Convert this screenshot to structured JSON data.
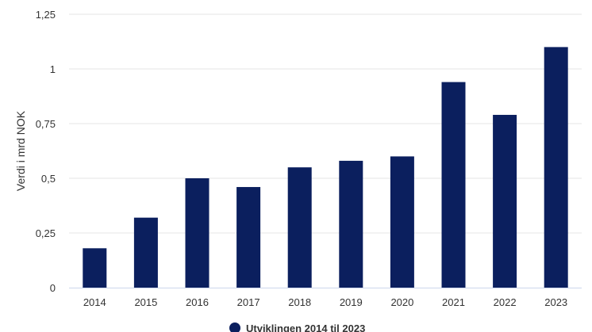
{
  "chart_data": {
    "type": "bar",
    "categories": [
      "2014",
      "2015",
      "2016",
      "2017",
      "2018",
      "2019",
      "2020",
      "2021",
      "2022",
      "2023"
    ],
    "series": [
      {
        "name": "Utviklingen 2014 til 2023",
        "values": [
          0.18,
          0.32,
          0.5,
          0.46,
          0.55,
          0.58,
          0.6,
          0.94,
          0.79,
          1.1
        ]
      }
    ],
    "title": "",
    "xlabel": "",
    "ylabel": "Verdi i mrd NOK",
    "ylim": [
      0,
      1.25
    ],
    "yticks": [
      {
        "value": 0,
        "label": "0"
      },
      {
        "value": 0.25,
        "label": "0,25"
      },
      {
        "value": 0.5,
        "label": "0,5"
      },
      {
        "value": 0.75,
        "label": "0,75"
      },
      {
        "value": 1,
        "label": "1"
      },
      {
        "value": 1.25,
        "label": "1,25"
      }
    ],
    "grid": true,
    "legend": "bottom-center",
    "colors": {
      "bar": "#0b1f5e",
      "grid": "#e6e6e6",
      "axis": "#ccd6eb"
    }
  }
}
